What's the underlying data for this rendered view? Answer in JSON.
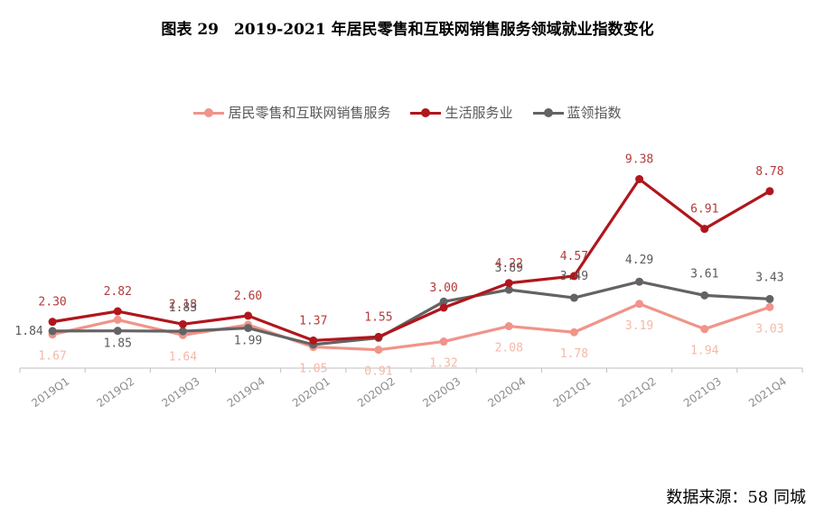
{
  "title": "图表 29　2019-2021 年居民零售和互联网销售服务领域就业指数变化",
  "source": "数据来源：58 同城",
  "chart_data": {
    "type": "line",
    "title": "图表 29　2019-2021 年居民零售和互联网销售服务领域就业指数变化",
    "xlabel": "",
    "ylabel": "",
    "ylim": [
      0,
      12
    ],
    "grid": false,
    "legend_position": "top",
    "categories": [
      "2019Q1",
      "2019Q2",
      "2019Q3",
      "2019Q4",
      "2020Q1",
      "2020Q2",
      "2020Q3",
      "2020Q4",
      "2021Q1",
      "2021Q2",
      "2021Q3",
      "2021Q4"
    ],
    "series": [
      {
        "name": "居民零售和互联网销售服务",
        "color": "#f0948a",
        "label_color": "#f5b8a8",
        "values": [
          1.67,
          2.4,
          1.64,
          2.15,
          1.05,
          0.91,
          1.32,
          2.08,
          1.78,
          3.19,
          1.94,
          3.03
        ]
      },
      {
        "name": "生活服务业",
        "color": "#b0161c",
        "label_color": "#b43a3a",
        "values": [
          2.3,
          2.82,
          2.18,
          2.6,
          1.37,
          1.55,
          3.0,
          4.22,
          4.57,
          9.38,
          6.91,
          8.78
        ]
      },
      {
        "name": "蓝领指数",
        "color": "#636363",
        "label_color": "#595959",
        "values": [
          1.84,
          1.85,
          1.83,
          1.99,
          1.17,
          1.5,
          3.3,
          3.89,
          3.49,
          4.29,
          3.61,
          3.43
        ]
      }
    ],
    "data_labels": [
      {
        "series": 0,
        "index": 0,
        "text": "1.67"
      },
      {
        "series": 0,
        "index": 2,
        "text": "1.64"
      },
      {
        "series": 0,
        "index": 4,
        "text": "1.05"
      },
      {
        "series": 0,
        "index": 5,
        "text": "0.91"
      },
      {
        "series": 0,
        "index": 6,
        "text": "1.32"
      },
      {
        "series": 0,
        "index": 7,
        "text": "2.08"
      },
      {
        "series": 0,
        "index": 8,
        "text": "1.78"
      },
      {
        "series": 0,
        "index": 9,
        "text": "3.19"
      },
      {
        "series": 0,
        "index": 10,
        "text": "1.94"
      },
      {
        "series": 0,
        "index": 11,
        "text": "3.03"
      },
      {
        "series": 1,
        "index": 0,
        "text": "2.30"
      },
      {
        "series": 1,
        "index": 1,
        "text": "2.82"
      },
      {
        "series": 1,
        "index": 2,
        "text": "2.18"
      },
      {
        "series": 1,
        "index": 3,
        "text": "2.60"
      },
      {
        "series": 1,
        "index": 4,
        "text": "1.37"
      },
      {
        "series": 1,
        "index": 5,
        "text": "1.55"
      },
      {
        "series": 1,
        "index": 6,
        "text": "3.00"
      },
      {
        "series": 1,
        "index": 7,
        "text": "4.22"
      },
      {
        "series": 1,
        "index": 8,
        "text": "4.57"
      },
      {
        "series": 1,
        "index": 9,
        "text": "9.38"
      },
      {
        "series": 1,
        "index": 10,
        "text": "6.91"
      },
      {
        "series": 1,
        "index": 11,
        "text": "8.78"
      },
      {
        "series": 2,
        "index": 0,
        "text": "1.84"
      },
      {
        "series": 2,
        "index": 1,
        "text": "1.85"
      },
      {
        "series": 2,
        "index": 2,
        "text": "1.83"
      },
      {
        "series": 2,
        "index": 3,
        "text": "1.99"
      },
      {
        "series": 2,
        "index": 7,
        "text": "3.89"
      },
      {
        "series": 2,
        "index": 8,
        "text": "3.49"
      },
      {
        "series": 2,
        "index": 9,
        "text": "4.29"
      },
      {
        "series": 2,
        "index": 10,
        "text": "3.61"
      },
      {
        "series": 2,
        "index": 11,
        "text": "3.43"
      }
    ]
  }
}
